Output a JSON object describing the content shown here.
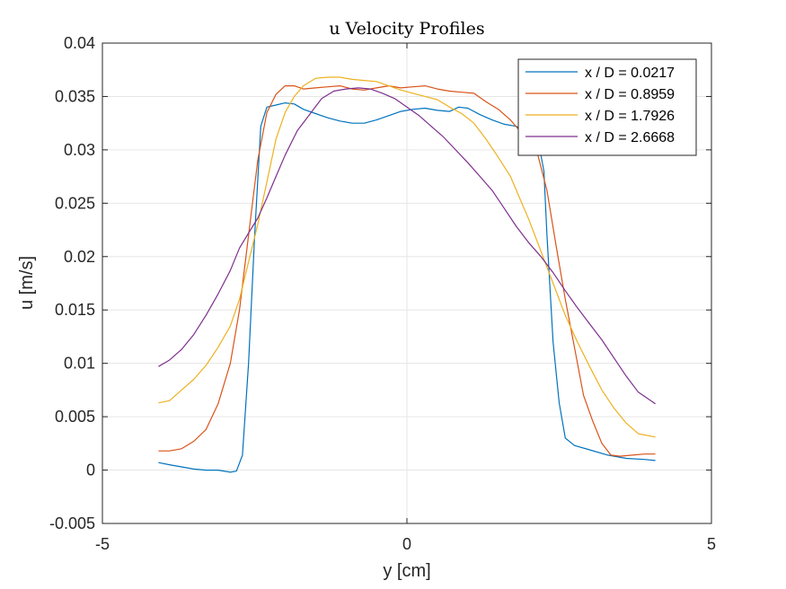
{
  "chart_data": {
    "type": "line",
    "title": "u Velocity Profiles",
    "xlabel": "y [cm]",
    "ylabel": "u [m/s]",
    "xlim": [
      -5,
      5
    ],
    "ylim": [
      -0.005,
      0.04
    ],
    "xticks": [
      "-5",
      "0",
      "5"
    ],
    "yticks": [
      "-0.005",
      "0",
      "0.005",
      "0.01",
      "0.015",
      "0.02",
      "0.025",
      "0.03",
      "0.035",
      "0.04"
    ],
    "grid": true,
    "legend": "top-right",
    "series": [
      {
        "name": "x / D = 0.0217",
        "color": "#0072BD",
        "points": [
          [
            -4.08,
            0.0007
          ],
          [
            -3.9,
            0.0005
          ],
          [
            -3.7,
            0.0003
          ],
          [
            -3.5,
            0.0001
          ],
          [
            -3.3,
            0
          ],
          [
            -3.1,
            0
          ],
          [
            -2.9,
            -0.0002
          ],
          [
            -2.8,
            -0.0001
          ],
          [
            -2.7,
            0.0014
          ],
          [
            -2.6,
            0.01
          ],
          [
            -2.5,
            0.022
          ],
          [
            -2.4,
            0.0322
          ],
          [
            -2.3,
            0.034
          ],
          [
            -2.15,
            0.0342
          ],
          [
            -2.0,
            0.0344
          ],
          [
            -1.85,
            0.0343
          ],
          [
            -1.7,
            0.0338
          ],
          [
            -1.5,
            0.0334
          ],
          [
            -1.3,
            0.033
          ],
          [
            -1.1,
            0.0327
          ],
          [
            -0.9,
            0.0325
          ],
          [
            -0.7,
            0.0325
          ],
          [
            -0.5,
            0.0328
          ],
          [
            -0.3,
            0.0332
          ],
          [
            -0.1,
            0.0336
          ],
          [
            0.1,
            0.0338
          ],
          [
            0.3,
            0.0339
          ],
          [
            0.5,
            0.0337
          ],
          [
            0.7,
            0.0336
          ],
          [
            0.85,
            0.034
          ],
          [
            1.0,
            0.0339
          ],
          [
            1.2,
            0.0333
          ],
          [
            1.4,
            0.0328
          ],
          [
            1.6,
            0.0324
          ],
          [
            1.8,
            0.0322
          ],
          [
            1.95,
            0.0314
          ],
          [
            2.05,
            0.0308
          ],
          [
            2.15,
            0.0305
          ],
          [
            2.2,
            0.0295
          ],
          [
            2.25,
            0.028
          ],
          [
            2.3,
            0.022
          ],
          [
            2.4,
            0.012
          ],
          [
            2.5,
            0.0063
          ],
          [
            2.6,
            0.003
          ],
          [
            2.75,
            0.0023
          ],
          [
            3.0,
            0.0019
          ],
          [
            3.3,
            0.0014
          ],
          [
            3.6,
            0.0011
          ],
          [
            3.9,
            0.001
          ],
          [
            4.08,
            0.0009
          ]
        ]
      },
      {
        "name": "x / D = 0.8959",
        "color": "#D95319",
        "points": [
          [
            -4.08,
            0.0018
          ],
          [
            -3.9,
            0.0018
          ],
          [
            -3.7,
            0.002
          ],
          [
            -3.5,
            0.0027
          ],
          [
            -3.3,
            0.0038
          ],
          [
            -3.1,
            0.0062
          ],
          [
            -2.9,
            0.01
          ],
          [
            -2.75,
            0.015
          ],
          [
            -2.6,
            0.022
          ],
          [
            -2.45,
            0.029
          ],
          [
            -2.3,
            0.0335
          ],
          [
            -2.15,
            0.0352
          ],
          [
            -2.0,
            0.036
          ],
          [
            -1.85,
            0.036
          ],
          [
            -1.7,
            0.0357
          ],
          [
            -1.5,
            0.0358
          ],
          [
            -1.3,
            0.0359
          ],
          [
            -1.1,
            0.036
          ],
          [
            -0.9,
            0.0357
          ],
          [
            -0.7,
            0.0356
          ],
          [
            -0.5,
            0.0358
          ],
          [
            -0.3,
            0.036
          ],
          [
            -0.1,
            0.0358
          ],
          [
            0.1,
            0.0359
          ],
          [
            0.3,
            0.036
          ],
          [
            0.5,
            0.0357
          ],
          [
            0.7,
            0.0355
          ],
          [
            0.9,
            0.0354
          ],
          [
            1.1,
            0.0353
          ],
          [
            1.3,
            0.0345
          ],
          [
            1.5,
            0.0338
          ],
          [
            1.7,
            0.0328
          ],
          [
            1.85,
            0.0318
          ],
          [
            2.0,
            0.0307
          ],
          [
            2.15,
            0.0295
          ],
          [
            2.3,
            0.0262
          ],
          [
            2.45,
            0.021
          ],
          [
            2.6,
            0.016
          ],
          [
            2.75,
            0.0115
          ],
          [
            2.9,
            0.007
          ],
          [
            3.05,
            0.0046
          ],
          [
            3.2,
            0.0025
          ],
          [
            3.35,
            0.0014
          ],
          [
            3.5,
            0.0013
          ],
          [
            3.7,
            0.0014
          ],
          [
            3.9,
            0.0015
          ],
          [
            4.08,
            0.0015
          ]
        ]
      },
      {
        "name": "x / D = 1.7926",
        "color": "#EDB120",
        "points": [
          [
            -4.08,
            0.0063
          ],
          [
            -3.9,
            0.0065
          ],
          [
            -3.7,
            0.0075
          ],
          [
            -3.5,
            0.0085
          ],
          [
            -3.3,
            0.0098
          ],
          [
            -3.1,
            0.0115
          ],
          [
            -2.9,
            0.0135
          ],
          [
            -2.75,
            0.016
          ],
          [
            -2.6,
            0.0195
          ],
          [
            -2.45,
            0.023
          ],
          [
            -2.3,
            0.027
          ],
          [
            -2.15,
            0.031
          ],
          [
            -2.0,
            0.0335
          ],
          [
            -1.85,
            0.035
          ],
          [
            -1.7,
            0.036
          ],
          [
            -1.5,
            0.0367
          ],
          [
            -1.3,
            0.0368
          ],
          [
            -1.1,
            0.0368
          ],
          [
            -0.9,
            0.0366
          ],
          [
            -0.7,
            0.0365
          ],
          [
            -0.5,
            0.0364
          ],
          [
            -0.3,
            0.036
          ],
          [
            -0.1,
            0.0356
          ],
          [
            0.1,
            0.0353
          ],
          [
            0.3,
            0.035
          ],
          [
            0.5,
            0.0347
          ],
          [
            0.7,
            0.034
          ],
          [
            0.9,
            0.0334
          ],
          [
            1.1,
            0.0325
          ],
          [
            1.3,
            0.031
          ],
          [
            1.5,
            0.0293
          ],
          [
            1.7,
            0.0275
          ],
          [
            1.85,
            0.0255
          ],
          [
            2.0,
            0.0235
          ],
          [
            2.2,
            0.0205
          ],
          [
            2.4,
            0.0175
          ],
          [
            2.6,
            0.0145
          ],
          [
            2.8,
            0.012
          ],
          [
            3.0,
            0.0097
          ],
          [
            3.2,
            0.0075
          ],
          [
            3.4,
            0.0058
          ],
          [
            3.6,
            0.0044
          ],
          [
            3.8,
            0.0034
          ],
          [
            4.08,
            0.0031
          ]
        ]
      },
      {
        "name": "x / D = 2.6668",
        "color": "#7E2F8E",
        "points": [
          [
            -4.08,
            0.0097
          ],
          [
            -3.9,
            0.0103
          ],
          [
            -3.7,
            0.0113
          ],
          [
            -3.5,
            0.0127
          ],
          [
            -3.3,
            0.0145
          ],
          [
            -3.1,
            0.0165
          ],
          [
            -2.9,
            0.0187
          ],
          [
            -2.75,
            0.0208
          ],
          [
            -2.6,
            0.0222
          ],
          [
            -2.45,
            0.0236
          ],
          [
            -2.3,
            0.0255
          ],
          [
            -2.15,
            0.0275
          ],
          [
            -2.0,
            0.0295
          ],
          [
            -1.8,
            0.0318
          ],
          [
            -1.6,
            0.0333
          ],
          [
            -1.4,
            0.0348
          ],
          [
            -1.2,
            0.0355
          ],
          [
            -1.0,
            0.0357
          ],
          [
            -0.8,
            0.0358
          ],
          [
            -0.6,
            0.0357
          ],
          [
            -0.4,
            0.0353
          ],
          [
            -0.2,
            0.0348
          ],
          [
            0,
            0.034
          ],
          [
            0.2,
            0.0332
          ],
          [
            0.4,
            0.0322
          ],
          [
            0.6,
            0.0312
          ],
          [
            0.8,
            0.03
          ],
          [
            1.0,
            0.0288
          ],
          [
            1.2,
            0.0275
          ],
          [
            1.4,
            0.0262
          ],
          [
            1.6,
            0.0245
          ],
          [
            1.8,
            0.0228
          ],
          [
            2.0,
            0.0213
          ],
          [
            2.2,
            0.02
          ],
          [
            2.4,
            0.0185
          ],
          [
            2.6,
            0.0168
          ],
          [
            2.8,
            0.0152
          ],
          [
            3.0,
            0.0137
          ],
          [
            3.2,
            0.0122
          ],
          [
            3.4,
            0.0105
          ],
          [
            3.6,
            0.0088
          ],
          [
            3.8,
            0.0073
          ],
          [
            4.08,
            0.0062
          ]
        ]
      }
    ]
  }
}
